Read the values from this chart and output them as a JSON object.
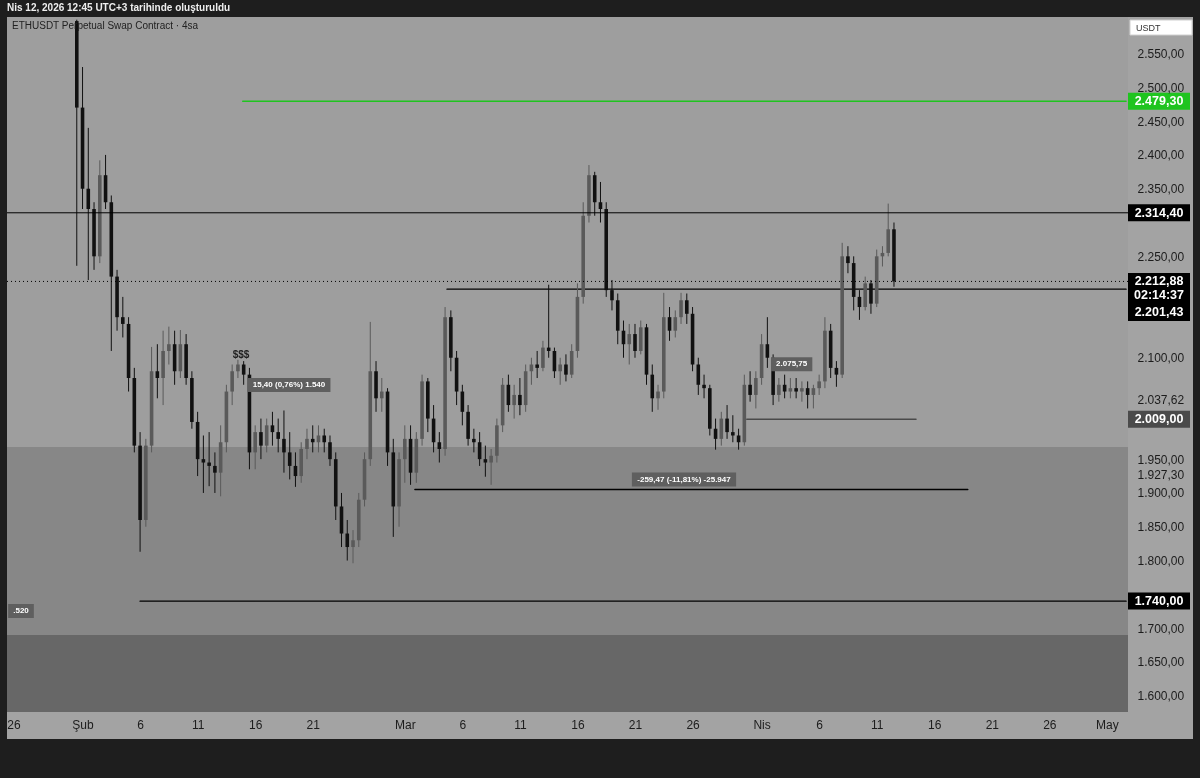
{
  "chart_data": {
    "type": "candlestick",
    "title": "Nis 12, 2026 12:45 UTC+3 tarihinde oluşturuldu",
    "subtitle": "ETHUSDT Perpetual Swap Contract · 4sa",
    "ylabel": "USDT",
    "xlim": [
      "2026-01-25T10:30",
      "2026-05-02T20:00"
    ],
    "ylim": [
      1576,
      2604
    ],
    "xticks": [
      {
        "value": "2026-01-26",
        "label": "26"
      },
      {
        "value": "2026-02-01",
        "label": "Şub"
      },
      {
        "value": "2026-02-06",
        "label": "6"
      },
      {
        "value": "2026-02-11",
        "label": "11"
      },
      {
        "value": "2026-02-16",
        "label": "16"
      },
      {
        "value": "2026-02-21",
        "label": "21"
      },
      {
        "value": "2026-03-01",
        "label": "Mar"
      },
      {
        "value": "2026-03-06",
        "label": "6"
      },
      {
        "value": "2026-03-11",
        "label": "11"
      },
      {
        "value": "2026-03-16",
        "label": "16"
      },
      {
        "value": "2026-03-21",
        "label": "21"
      },
      {
        "value": "2026-03-26",
        "label": "26"
      },
      {
        "value": "2026-04-01",
        "label": "Nis"
      },
      {
        "value": "2026-04-06",
        "label": "6"
      },
      {
        "value": "2026-04-11",
        "label": "11"
      },
      {
        "value": "2026-04-16",
        "label": "16"
      },
      {
        "value": "2026-04-21",
        "label": "21"
      },
      {
        "value": "2026-04-26",
        "label": "26"
      },
      {
        "value": "2026-05-01",
        "label": "May"
      }
    ],
    "yticks": [
      {
        "value": 1600,
        "label": "1.600,00"
      },
      {
        "value": 1650,
        "label": "1.650,00"
      },
      {
        "value": 1700,
        "label": "1.700,00"
      },
      {
        "value": 1800,
        "label": "1.800,00"
      },
      {
        "value": 1850,
        "label": "1.850,00"
      },
      {
        "value": 1900,
        "label": "1.900,00"
      },
      {
        "value": 1927.3,
        "label": "1.927,30"
      },
      {
        "value": 1950,
        "label": "1.950,00"
      },
      {
        "value": 2037.62,
        "label": "2.037,62"
      },
      {
        "value": 2100,
        "label": "2.100,00"
      },
      {
        "value": 2250,
        "label": "2.250,00"
      },
      {
        "value": 2350,
        "label": "2.350,00"
      },
      {
        "value": 2400,
        "label": "2.400,00"
      },
      {
        "value": 2450,
        "label": "2.450,00"
      },
      {
        "value": 2500,
        "label": "2.500,00"
      },
      {
        "value": 2550,
        "label": "2.550,00"
      }
    ],
    "bands": [
      {
        "axis": "y",
        "from": 1690,
        "to": 1968,
        "color": "#878787"
      },
      {
        "axis": "y",
        "from": 1576,
        "to": 1690,
        "color": "#676767"
      }
    ],
    "ref_lines": [
      {
        "axis": "y",
        "value": 2314.4,
        "label": "2.314,40",
        "color": "#000000",
        "line_style": "solid"
      },
      {
        "axis": "y",
        "value": 2212.88,
        "label": "2.212,88\n02:14:37",
        "color": "#000000",
        "line_style": "dotted"
      }
    ],
    "annotations": [
      "$$$",
      "15,40 (0,76%) 1.540",
      {
        "text": "2.075,75",
        "x": "2026-04-01T07:00",
        "y": 2075.75
      },
      {
        "text": "-259,47 (-11,81%) -25.947",
        "x": "2026-03-20T05:00",
        "y": 1905
      },
      ".520"
    ],
    "series": [
      {
        "color": "#5a5a5a",
        "x": [
          "2026-02-02T12:00",
          "2026-02-06T12:00",
          "2026-02-07T00:00",
          "2026-02-08T00:00",
          "2026-02-08T12:00",
          "2026-02-09T12:00",
          "2026-02-13T00:00",
          "2026-02-13T12:00",
          "2026-02-14T00:00",
          "2026-02-14T12:00",
          "2026-02-16T00:00",
          "2026-02-17T00:00",
          "2026-02-20T00:00",
          "2026-02-20T12:00",
          "2026-02-21T12:00",
          "2026-02-24T12:00",
          "2026-02-25T00:00",
          "2026-02-25T12:00",
          "2026-02-26T00:00",
          "2026-02-27T00:00",
          "2026-02-28T12:00",
          "2026-03-01T00:00",
          "2026-03-02T00:00",
          "2026-03-02T12:00",
          "2026-03-04T12:00",
          "2026-03-08T12:00",
          "2026-03-09T00:00",
          "2026-03-09T12:00",
          "2026-03-10T12:00",
          "2026-03-11T12:00",
          "2026-03-12T00:00",
          "2026-03-13T00:00",
          "2026-03-14T12:00",
          "2026-03-15T12:00",
          "2026-03-16T00:00",
          "2026-03-16T12:00",
          "2026-03-17T00:00",
          "2026-03-20T12:00",
          "2026-03-21T12:00",
          "2026-03-23T00:00",
          "2026-03-23T12:00",
          "2026-03-24T12:00",
          "2026-03-25T00:00",
          "2026-03-28T12:00",
          "2026-03-30T12:00",
          "2026-03-31T12:00",
          "2026-04-01T00:00",
          "2026-04-02T12:00",
          "2026-04-03T12:00",
          "2026-04-04T12:00",
          "2026-04-05T12:00",
          "2026-04-06T00:00",
          "2026-04-06T12:00",
          "2026-04-08T00:00",
          "2026-04-10T00:00",
          "2026-04-11T00:00",
          "2026-04-11T12:00",
          "2026-04-12T00:00"
        ],
        "ohlc": [
          [
            2250,
            2392,
            2240,
            2370
          ],
          [
            1860,
            1980,
            1850,
            1970
          ],
          [
            1970,
            2116,
            1960,
            2080
          ],
          [
            2070,
            2140,
            2030,
            2110
          ],
          [
            2110,
            2146,
            2090,
            2120
          ],
          [
            2080,
            2141,
            2070,
            2120
          ],
          [
            1930,
            2000,
            1895,
            1975
          ],
          [
            1975,
            2060,
            1960,
            2050
          ],
          [
            2050,
            2090,
            2030,
            2080
          ],
          [
            2080,
            2097,
            2070,
            2090
          ],
          [
            1960,
            2000,
            1935,
            1990
          ],
          [
            1970,
            2010,
            1960,
            2000
          ],
          [
            1925,
            1975,
            1915,
            1965
          ],
          [
            1965,
            1995,
            1950,
            1980
          ],
          [
            1975,
            2000,
            1960,
            1985
          ],
          [
            1820,
            1845,
            1796,
            1830
          ],
          [
            1830,
            1900,
            1820,
            1890
          ],
          [
            1890,
            1960,
            1880,
            1950
          ],
          [
            1950,
            2153,
            1940,
            2080
          ],
          [
            2040,
            2070,
            2020,
            2050
          ],
          [
            1880,
            1960,
            1850,
            1950
          ],
          [
            1950,
            2000,
            1915,
            1980
          ],
          [
            1930,
            1990,
            1915,
            1980
          ],
          [
            1980,
            2075,
            1970,
            2065
          ],
          [
            1965,
            2175,
            1955,
            2160
          ],
          [
            1945,
            1965,
            1912,
            1955
          ],
          [
            1955,
            2010,
            1945,
            2000
          ],
          [
            2000,
            2070,
            1990,
            2060
          ],
          [
            2030,
            2060,
            2010,
            2045
          ],
          [
            2030,
            2090,
            2020,
            2080
          ],
          [
            2080,
            2100,
            2060,
            2090
          ],
          [
            2085,
            2125,
            2080,
            2115
          ],
          [
            2080,
            2100,
            2060,
            2090
          ],
          [
            2075,
            2120,
            2070,
            2110
          ],
          [
            2110,
            2210,
            2100,
            2190
          ],
          [
            2190,
            2330,
            2180,
            2310
          ],
          [
            2310,
            2385,
            2300,
            2370
          ],
          [
            2120,
            2150,
            2090,
            2135
          ],
          [
            2110,
            2155,
            2105,
            2145
          ],
          [
            2040,
            2060,
            2023,
            2050
          ],
          [
            2050,
            2196,
            2040,
            2160
          ],
          [
            2140,
            2170,
            2130,
            2160
          ],
          [
            2160,
            2196,
            2150,
            2185
          ],
          [
            1980,
            2020,
            1970,
            2010
          ],
          [
            1975,
            2075,
            1970,
            2060
          ],
          [
            2045,
            2080,
            2025,
            2070
          ],
          [
            2070,
            2135,
            2060,
            2120
          ],
          [
            2045,
            2070,
            2035,
            2060
          ],
          [
            2050,
            2070,
            2040,
            2055
          ],
          [
            2050,
            2065,
            2035,
            2055
          ],
          [
            2045,
            2060,
            2025,
            2055
          ],
          [
            2055,
            2075,
            2045,
            2065
          ],
          [
            2065,
            2160,
            2055,
            2140
          ],
          [
            2075,
            2270,
            2070,
            2250
          ],
          [
            2175,
            2220,
            2170,
            2210
          ],
          [
            2180,
            2260,
            2175,
            2250
          ],
          [
            2250,
            2265,
            2235,
            2255
          ],
          [
            2255,
            2328,
            2250,
            2290
          ]
        ]
      },
      {
        "color": "#111111",
        "x": [
          "2026-01-31T12:00",
          "2026-02-01T00:00",
          "2026-02-01T12:00",
          "2026-02-02T00:00",
          "2026-02-03T00:00",
          "2026-02-03T12:00",
          "2026-02-04T00:00",
          "2026-02-04T12:00",
          "2026-02-05T00:00",
          "2026-02-05T12:00",
          "2026-02-06T00:00",
          "2026-02-07T12:00",
          "2026-02-09T00:00",
          "2026-02-10T00:00",
          "2026-02-10T12:00",
          "2026-02-11T00:00",
          "2026-02-11T12:00",
          "2026-02-12T00:00",
          "2026-02-12T12:00",
          "2026-02-15T00:00",
          "2026-02-15T12:00",
          "2026-02-16T12:00",
          "2026-02-17T12:00",
          "2026-02-18T00:00",
          "2026-02-18T12:00",
          "2026-02-19T00:00",
          "2026-02-19T12:00",
          "2026-02-21T00:00",
          "2026-02-22T00:00",
          "2026-02-22T12:00",
          "2026-02-23T00:00",
          "2026-02-23T12:00",
          "2026-02-24T00:00",
          "2026-02-26T12:00",
          "2026-02-27T12:00",
          "2026-02-28T00:00",
          "2026-03-01T12:00",
          "2026-03-03T00:00",
          "2026-03-03T12:00",
          "2026-03-04T00:00",
          "2026-03-05T00:00",
          "2026-03-05T12:00",
          "2026-03-06T00:00",
          "2026-03-06T12:00",
          "2026-03-07T00:00",
          "2026-03-07T12:00",
          "2026-03-08T00:00",
          "2026-03-10T00:00",
          "2026-03-11T00:00",
          "2026-03-12T12:00",
          "2026-03-13T12:00",
          "2026-03-14T00:00",
          "2026-03-15T00:00",
          "2026-03-17T12:00",
          "2026-03-18T00:00",
          "2026-03-18T12:00",
          "2026-03-19T00:00",
          "2026-03-19T12:00",
          "2026-03-20T00:00",
          "2026-03-21T00:00",
          "2026-03-22T00:00",
          "2026-03-22T12:00",
          "2026-03-24T00:00",
          "2026-03-25T12:00",
          "2026-03-26T00:00",
          "2026-03-26T12:00",
          "2026-03-27T00:00",
          "2026-03-27T12:00",
          "2026-03-28T00:00",
          "2026-03-29T00:00",
          "2026-03-29T12:00",
          "2026-03-30T00:00",
          "2026-03-31T00:00",
          "2026-04-01T12:00",
          "2026-04-02T00:00",
          "2026-04-03T00:00",
          "2026-04-04T00:00",
          "2026-04-05T00:00",
          "2026-04-07T00:00",
          "2026-04-07T12:00",
          "2026-04-08T12:00",
          "2026-04-09T00:00",
          "2026-04-09T12:00",
          "2026-04-10T12:00",
          "2026-04-12T12:00"
        ],
        "ohlc": [
          [
            2598,
            2600,
            2236,
            2470
          ],
          [
            2470,
            2530,
            2320,
            2350
          ],
          [
            2350,
            2440,
            2215,
            2320
          ],
          [
            2320,
            2330,
            2230,
            2250
          ],
          [
            2370,
            2400,
            2320,
            2330
          ],
          [
            2330,
            2340,
            2110,
            2220
          ],
          [
            2220,
            2230,
            2140,
            2160
          ],
          [
            2160,
            2190,
            2130,
            2150
          ],
          [
            2150,
            2160,
            2050,
            2070
          ],
          [
            2070,
            2085,
            1960,
            1970
          ],
          [
            1970,
            1990,
            1813,
            1860
          ],
          [
            2080,
            2120,
            2040,
            2070
          ],
          [
            2120,
            2140,
            2060,
            2080
          ],
          [
            2120,
            2135,
            2060,
            2070
          ],
          [
            2070,
            2080,
            1995,
            2005
          ],
          [
            2005,
            2020,
            1925,
            1950
          ],
          [
            1950,
            1985,
            1900,
            1945
          ],
          [
            1945,
            1990,
            1910,
            1940
          ],
          [
            1940,
            1960,
            1900,
            1930
          ],
          [
            2090,
            2095,
            2060,
            2075
          ],
          [
            2075,
            2085,
            1935,
            1960
          ],
          [
            1990,
            2010,
            1950,
            1970
          ],
          [
            2000,
            2020,
            1970,
            1990
          ],
          [
            1990,
            2010,
            1960,
            1980
          ],
          [
            1980,
            2022,
            1930,
            1960
          ],
          [
            1960,
            1990,
            1920,
            1940
          ],
          [
            1940,
            1960,
            1909,
            1925
          ],
          [
            1980,
            2000,
            1960,
            1975
          ],
          [
            1985,
            1995,
            1960,
            1975
          ],
          [
            1975,
            1985,
            1940,
            1950
          ],
          [
            1950,
            1960,
            1860,
            1880
          ],
          [
            1880,
            1900,
            1820,
            1840
          ],
          [
            1840,
            1860,
            1800,
            1820
          ],
          [
            2080,
            2095,
            2020,
            2040
          ],
          [
            2050,
            2055,
            1940,
            1960
          ],
          [
            1960,
            1980,
            1835,
            1880
          ],
          [
            1980,
            2000,
            1912,
            1930
          ],
          [
            2065,
            2070,
            1990,
            2010
          ],
          [
            2010,
            2030,
            1960,
            1975
          ],
          [
            1975,
            1990,
            1945,
            1965
          ],
          [
            2160,
            2170,
            2080,
            2100
          ],
          [
            2100,
            2110,
            2030,
            2050
          ],
          [
            2050,
            2060,
            2000,
            2020
          ],
          [
            2020,
            2030,
            1970,
            1980
          ],
          [
            1980,
            1995,
            1960,
            1975
          ],
          [
            1975,
            1990,
            1940,
            1950
          ],
          [
            1950,
            1970,
            1924,
            1945
          ],
          [
            2060,
            2075,
            2020,
            2030
          ],
          [
            2045,
            2070,
            2015,
            2030
          ],
          [
            2090,
            2110,
            2070,
            2085
          ],
          [
            2115,
            2208,
            2100,
            2110
          ],
          [
            2110,
            2115,
            2070,
            2080
          ],
          [
            2090,
            2105,
            2065,
            2075
          ],
          [
            2370,
            2375,
            2310,
            2330
          ],
          [
            2330,
            2360,
            2300,
            2320
          ],
          [
            2320,
            2330,
            2190,
            2200
          ],
          [
            2200,
            2215,
            2170,
            2185
          ],
          [
            2185,
            2195,
            2120,
            2140
          ],
          [
            2140,
            2155,
            2100,
            2120
          ],
          [
            2135,
            2150,
            2100,
            2110
          ],
          [
            2145,
            2150,
            2060,
            2075
          ],
          [
            2075,
            2090,
            2020,
            2040
          ],
          [
            2160,
            2175,
            2125,
            2140
          ],
          [
            2185,
            2195,
            2150,
            2165
          ],
          [
            2165,
            2175,
            2080,
            2090
          ],
          [
            2090,
            2100,
            2045,
            2060
          ],
          [
            2060,
            2075,
            2040,
            2055
          ],
          [
            2055,
            2060,
            1985,
            1995
          ],
          [
            1995,
            2010,
            1964,
            1980
          ],
          [
            2010,
            2030,
            1980,
            1990
          ],
          [
            1990,
            2015,
            1975,
            1985
          ],
          [
            1985,
            1995,
            1964,
            1975
          ],
          [
            2060,
            2080,
            2035,
            2045
          ],
          [
            2120,
            2160,
            2085,
            2100
          ],
          [
            2100,
            2105,
            2030,
            2045
          ],
          [
            2060,
            2075,
            2040,
            2050
          ],
          [
            2055,
            2070,
            2040,
            2050
          ],
          [
            2055,
            2065,
            2025,
            2045
          ],
          [
            2140,
            2150,
            2070,
            2085
          ],
          [
            2085,
            2095,
            2057,
            2075
          ],
          [
            2250,
            2265,
            2225,
            2240
          ],
          [
            2240,
            2250,
            2170,
            2190
          ],
          [
            2190,
            2200,
            2156,
            2175
          ],
          [
            2210,
            2215,
            2165,
            2180
          ],
          [
            2290,
            2300,
            2205,
            2212.88
          ]
        ]
      },
      {
        "type": "line",
        "name": "2.479,30",
        "color": "#1fc41f",
        "x": [
          "2026-02-14T22:00",
          "2026-05-02T16:00"
        ],
        "values": [
          2479.3,
          2479.3
        ]
      },
      {
        "type": "line",
        "name": "2.201,43",
        "color": "#000000",
        "x": [
          "2026-03-04T16:00",
          "2026-05-02T16:00"
        ],
        "values": [
          2201.43,
          2201.43
        ]
      },
      {
        "type": "line",
        "name": "2.009,00",
        "color": "#4a4a4a",
        "x": [
          "2026-03-30T17:00",
          "2026-04-14T10:00"
        ],
        "values": [
          2009,
          2009
        ]
      },
      {
        "type": "line",
        "color": "#000000",
        "x": [
          "2026-03-01T21:00",
          "2026-04-18T22:00"
        ],
        "values": [
          1905,
          1905
        ]
      },
      {
        "type": "line",
        "name": "1.740,00",
        "color": "#000000",
        "x": [
          "2026-02-06T00:00",
          "2026-05-02T16:00"
        ],
        "values": [
          1740,
          1740
        ]
      }
    ]
  }
}
